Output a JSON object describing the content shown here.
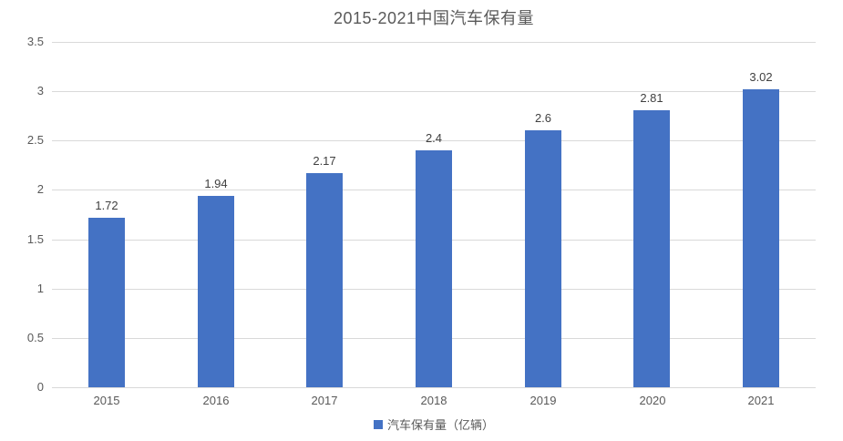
{
  "title": "2015-2021中国汽车保有量",
  "legend": {
    "label": "汽车保有量（亿辆）",
    "marker_color": "#4472c4"
  },
  "colors": {
    "bar": "#4472c4",
    "gridline": "#d9d9d9",
    "axis_text": "#595959",
    "data_label_text": "#404040",
    "title_text": "#595959",
    "background": "#ffffff"
  },
  "chart_data": {
    "type": "bar",
    "title": "2015-2021中国汽车保有量",
    "categories": [
      "2015",
      "2016",
      "2017",
      "2018",
      "2019",
      "2020",
      "2021"
    ],
    "series": [
      {
        "name": "汽车保有量（亿辆）",
        "values": [
          1.72,
          1.94,
          2.17,
          2.4,
          2.6,
          2.81,
          3.02
        ],
        "data_labels": [
          "1.72",
          "1.94",
          "2.17",
          "2.4",
          "2.6",
          "2.81",
          "3.02"
        ],
        "color": "#4472c4"
      }
    ],
    "xlabel": "",
    "ylabel": "",
    "ylim": [
      0,
      3.5
    ],
    "ytick_interval": 0.5,
    "ytick_labels": [
      "0",
      "0.5",
      "1",
      "1.5",
      "2",
      "2.5",
      "3",
      "3.5"
    ],
    "grid": true,
    "legend_position": "bottom"
  }
}
